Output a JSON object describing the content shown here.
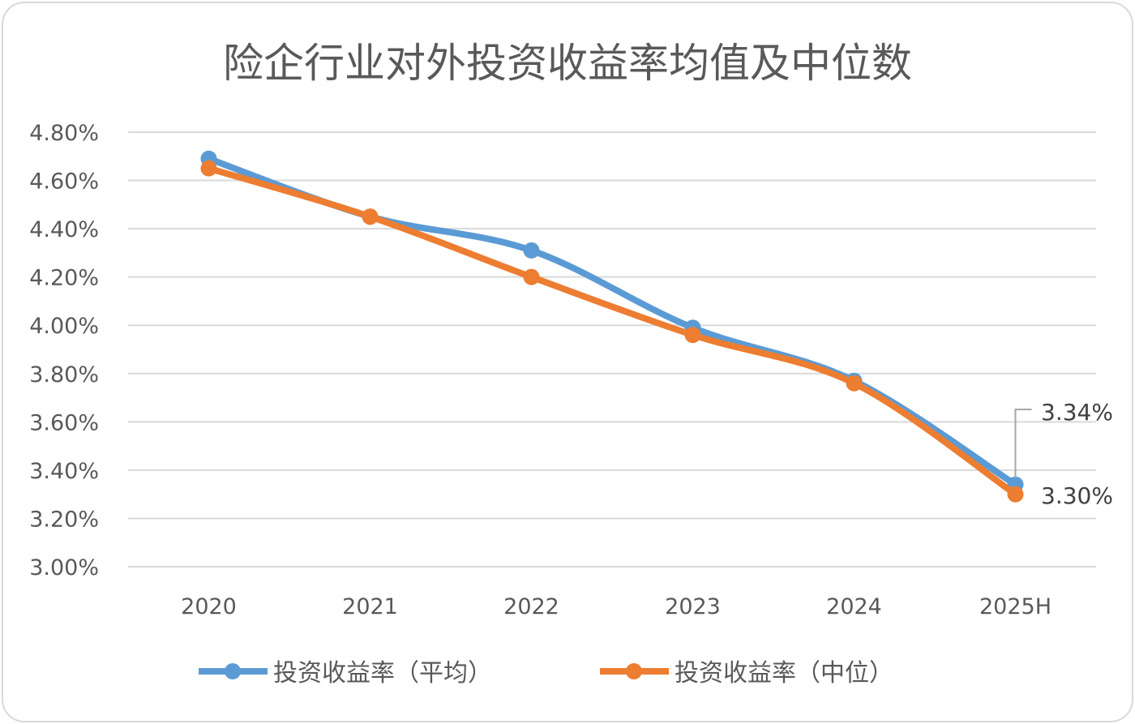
{
  "chart_data": {
    "type": "line",
    "title": "险企行业对外投资收益率均值及中位数",
    "categories": [
      "2020",
      "2021",
      "2022",
      "2023",
      "2024",
      "2025H"
    ],
    "yticks": [
      "3.00%",
      "3.20%",
      "3.40%",
      "3.60%",
      "3.80%",
      "4.00%",
      "4.20%",
      "4.40%",
      "4.60%",
      "4.80%"
    ],
    "ylim": [
      3.0,
      4.8
    ],
    "yunit": "%",
    "grid": true,
    "smooth": true,
    "legend_position": "bottom",
    "series": [
      {
        "name": "投资收益率（平均）",
        "color": "#5b9bd5",
        "values": [
          4.69,
          4.45,
          4.31,
          3.99,
          3.77,
          3.34
        ],
        "last_label": "3.34%"
      },
      {
        "name": "投资收益率（中位）",
        "color": "#ed7d31",
        "values": [
          4.65,
          4.45,
          4.2,
          3.96,
          3.76,
          3.3
        ],
        "last_label": "3.30%"
      }
    ]
  }
}
